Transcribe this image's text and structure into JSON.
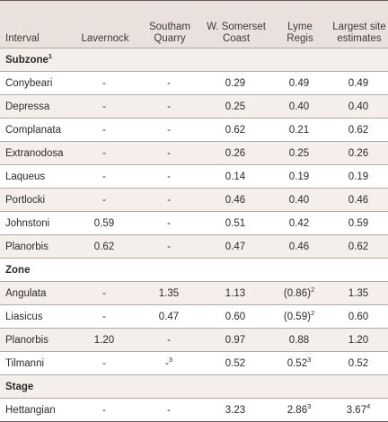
{
  "headers": [
    "Interval",
    "Lavernock",
    "Southam Quarry",
    "W. Somerset Coast",
    "Lyme Regis",
    "Largest site estimates"
  ],
  "sections": [
    {
      "title": "Subzone",
      "title_sup": "1",
      "rows": [
        {
          "interval": "Conybeari",
          "lavernock": "-",
          "southam": "-",
          "somerset": "0.29",
          "lyme": "0.49",
          "lyme_sup": "",
          "largest": "0.49",
          "largest_sup": ""
        },
        {
          "interval": "Depressa",
          "lavernock": "-",
          "southam": "-",
          "somerset": "0.25",
          "lyme": "0.40",
          "lyme_sup": "",
          "largest": "0.40",
          "largest_sup": ""
        },
        {
          "interval": "Complanata",
          "lavernock": "-",
          "southam": "-",
          "somerset": "0.62",
          "lyme": "0.21",
          "lyme_sup": "",
          "largest": "0.62",
          "largest_sup": ""
        },
        {
          "interval": "Extranodosa",
          "lavernock": "-",
          "southam": "-",
          "somerset": "0.26",
          "lyme": "0.25",
          "lyme_sup": "",
          "largest": "0.26",
          "largest_sup": ""
        },
        {
          "interval": "Laqueus",
          "lavernock": "-",
          "southam": "-",
          "somerset": "0.14",
          "lyme": "0.19",
          "lyme_sup": "",
          "largest": "0.19",
          "largest_sup": ""
        },
        {
          "interval": "Portlocki",
          "lavernock": "-",
          "southam": "-",
          "somerset": "0.46",
          "lyme": "0.40",
          "lyme_sup": "",
          "largest": "0.46",
          "largest_sup": ""
        },
        {
          "interval": "Johnstoni",
          "lavernock": "0.59",
          "southam": "-",
          "somerset": "0.51",
          "lyme": "0.42",
          "lyme_sup": "",
          "largest": "0.59",
          "largest_sup": ""
        },
        {
          "interval": "Planorbis",
          "lavernock": "0.62",
          "southam": "-",
          "somerset": "0.47",
          "lyme": "0.46",
          "lyme_sup": "",
          "largest": "0.62",
          "largest_sup": ""
        }
      ]
    },
    {
      "title": "Zone",
      "title_sup": "",
      "rows": [
        {
          "interval": "Angulata",
          "lavernock": "-",
          "southam": "1.35",
          "somerset": "1.13",
          "lyme": "(0.86)",
          "lyme_sup": "2",
          "largest": "1.35",
          "largest_sup": ""
        },
        {
          "interval": "Liasicus",
          "lavernock": "-",
          "southam": "0.47",
          "somerset": "0.60",
          "lyme": "(0.59)",
          "lyme_sup": "2",
          "largest": "0.60",
          "largest_sup": ""
        },
        {
          "interval": "Planorbis",
          "lavernock": "1.20",
          "southam": "-",
          "somerset": "0.97",
          "lyme": "0.88",
          "lyme_sup": "",
          "largest": "1.20",
          "largest_sup": ""
        },
        {
          "interval": "Tilmanni",
          "lavernock": "-",
          "southam": "-",
          "southam_sup": "3",
          "somerset": "0.52",
          "lyme": "0.52",
          "lyme_sup": "3",
          "largest": "0.52",
          "largest_sup": ""
        }
      ]
    },
    {
      "title": "Stage",
      "title_sup": "",
      "rows": [
        {
          "interval": "Hettangian",
          "lavernock": "-",
          "southam": "-",
          "somerset": "3.23",
          "lyme": "2.86",
          "lyme_sup": "3",
          "largest": "3.67",
          "largest_sup": "4"
        }
      ]
    }
  ]
}
